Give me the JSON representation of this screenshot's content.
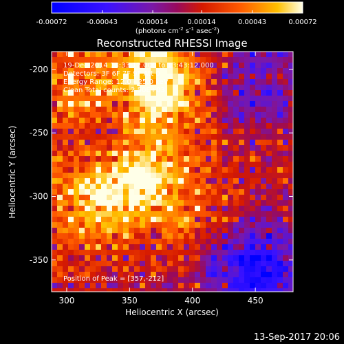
{
  "chart_data": {
    "type": "heatmap",
    "title": "Reconstructed RHESSI Image",
    "xlabel": "Heliocentric X (arcsec)",
    "ylabel": "Heliocentric Y (arcsec)",
    "xlim": [
      288,
      480
    ],
    "ylim": [
      -375,
      -186
    ],
    "xticks": [
      300,
      350,
      400,
      450
    ],
    "yticks": [
      -200,
      -250,
      -300,
      -350
    ],
    "colorbar": {
      "min": -0.00072,
      "max": 0.00072,
      "ticks": [
        "-0.00072",
        "-0.00043",
        "-0.00014",
        "0.00014",
        "0.00043",
        "0.00072"
      ],
      "unit_label": "(photons cm",
      "unit_sup1": "-2",
      "unit_mid": " s",
      "unit_sup2": "-1",
      "unit_end": " asec",
      "unit_sup3": "-2",
      "unit_close": ")"
    },
    "annotations": [
      "19-Dec-2014 13:33:12.000 to 13:43:12.000",
      "Detectors: 3F 6F 7F 9F Att 0",
      "Energy Range: 12.0 - 25.0 keV",
      "Clean     Total counts: 2.50E+03"
    ],
    "peak_label": "Position of Peak = [357,-212]",
    "peak": [
      357,
      -212
    ],
    "hot_regions": [
      {
        "x": 372,
        "y": -212,
        "value": 0.00072
      },
      {
        "x": 360,
        "y": -282,
        "value": 0.00058
      },
      {
        "x": 318,
        "y": -300,
        "value": 0.00046
      },
      {
        "x": 310,
        "y": -225,
        "value": 0.0004
      },
      {
        "x": 400,
        "y": -325,
        "value": 0.00026
      }
    ],
    "cold_regions": [
      {
        "x": 450,
        "y": -358,
        "value": -0.00072
      },
      {
        "x": 332,
        "y": -250,
        "value": -0.0004
      },
      {
        "x": 452,
        "y": -212,
        "value": -0.00036
      },
      {
        "x": 382,
        "y": -348,
        "value": -0.00012
      }
    ]
  },
  "footer_timestamp": "13-Sep-2017 20:06"
}
